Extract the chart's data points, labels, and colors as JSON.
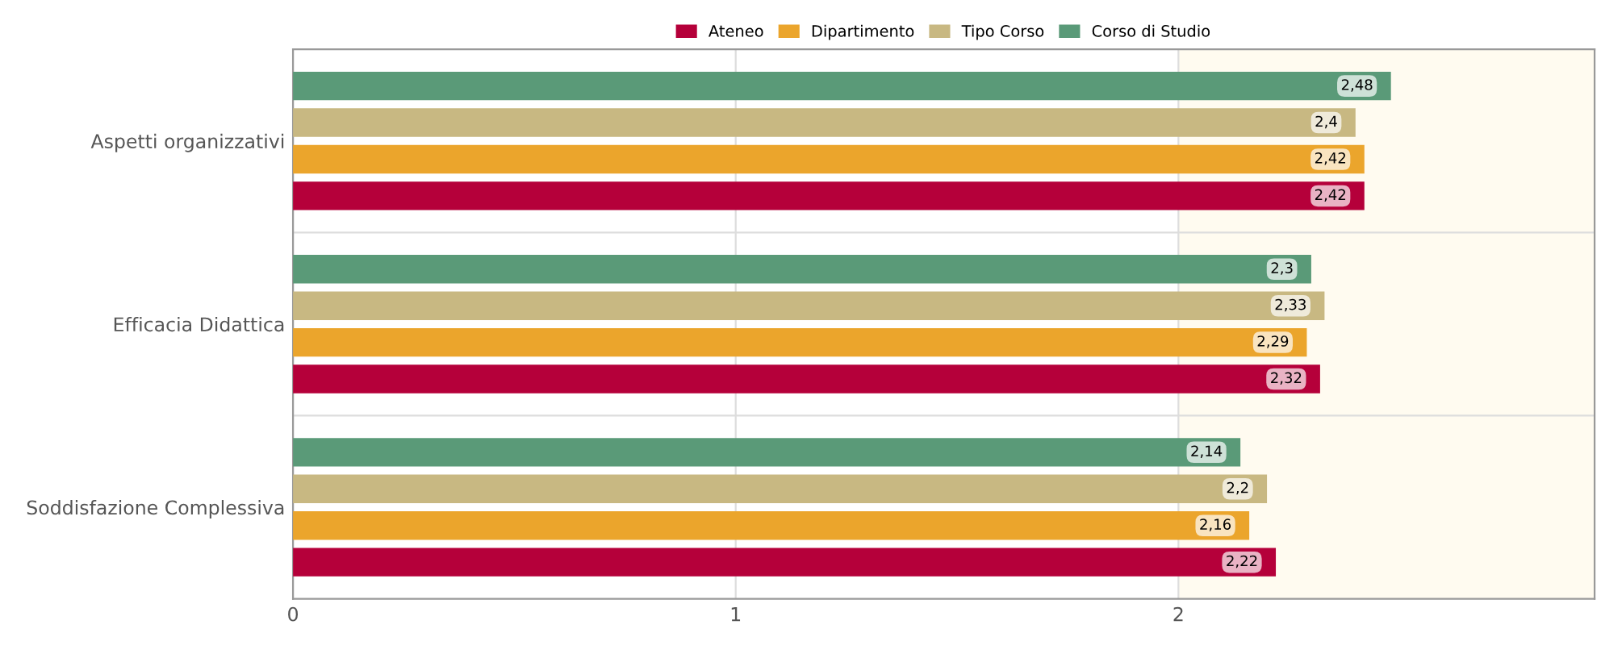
{
  "chart_data": {
    "type": "bar",
    "orientation": "horizontal",
    "categories": [
      "Aspetti organizzativi",
      "Efficacia Didattica",
      "Soddisfazione Complessiva"
    ],
    "series": [
      {
        "name": "Ateneo",
        "color": "#b5003a",
        "values": [
          2.42,
          2.32,
          2.22
        ],
        "value_labels": [
          "2,42",
          "2,32",
          "2,22"
        ]
      },
      {
        "name": "Dipartimento",
        "color": "#eba52c",
        "values": [
          2.42,
          2.29,
          2.16
        ],
        "value_labels": [
          "2,42",
          "2,29",
          "2,16"
        ]
      },
      {
        "name": "Tipo Corso",
        "color": "#c8b882",
        "values": [
          2.4,
          2.33,
          2.2
        ],
        "value_labels": [
          "2,4",
          "2,33",
          "2,2"
        ]
      },
      {
        "name": "Corso di Studio",
        "color": "#5a9a78",
        "values": [
          2.48,
          2.3,
          2.14
        ],
        "value_labels": [
          "2,48",
          "2,3",
          "2,14"
        ]
      }
    ],
    "xlim": [
      0,
      2.94
    ],
    "xticks": [
      0,
      1,
      2
    ],
    "bands": [
      {
        "axis": "x",
        "from": 2,
        "to": 2.94,
        "color": "#fffbf0"
      }
    ],
    "grid": "x",
    "legend": "top"
  }
}
